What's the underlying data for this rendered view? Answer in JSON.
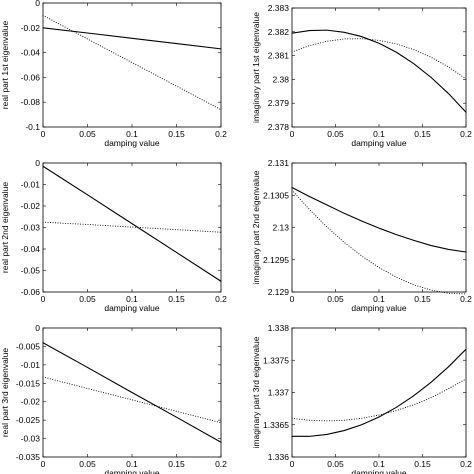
{
  "chart_data": [
    {
      "type": "line",
      "xlabel": "damping value",
      "ylabel": "real part 1st eigenvalue",
      "xlim": [
        0,
        0.2
      ],
      "ylim": [
        -0.1,
        0
      ],
      "xticks": [
        "0",
        "0.05",
        "0.1",
        "0.15",
        "0.2"
      ],
      "xtick_values": [
        0,
        0.05,
        0.1,
        0.15,
        0.2
      ],
      "yticks": [
        "-0.1",
        "-0.08",
        "-0.06",
        "-0.04",
        "-0.02",
        "0"
      ],
      "ytick_values": [
        -0.1,
        -0.08,
        -0.06,
        -0.04,
        -0.02,
        0
      ],
      "series": [
        {
          "style": "solid",
          "x": [
            0,
            0.05,
            0.1,
            0.15,
            0.2
          ],
          "y": [
            -0.02,
            -0.0242,
            -0.0285,
            -0.0327,
            -0.037
          ]
        },
        {
          "style": "dotted",
          "x": [
            0,
            0.05,
            0.1,
            0.15,
            0.2
          ],
          "y": [
            -0.01,
            -0.029,
            -0.048,
            -0.067,
            -0.086
          ]
        }
      ]
    },
    {
      "type": "line",
      "xlabel": "damping value",
      "ylabel": "imaginary part 1st eigenvalue",
      "xlim": [
        0,
        0.2
      ],
      "ylim": [
        2.378,
        2.383
      ],
      "xticks": [
        "0",
        "0.05",
        "0.1",
        "0.15",
        "0.2"
      ],
      "xtick_values": [
        0,
        0.05,
        0.1,
        0.15,
        0.2
      ],
      "yticks": [
        "2.378",
        "2.379",
        "2.38",
        "2.381",
        "2.382",
        "2.383"
      ],
      "ytick_values": [
        2.378,
        2.379,
        2.38,
        2.381,
        2.382,
        2.383
      ],
      "series": [
        {
          "style": "solid",
          "x": [
            0,
            0.02,
            0.04,
            0.06,
            0.08,
            0.1,
            0.12,
            0.14,
            0.16,
            0.18,
            0.2
          ],
          "y": [
            2.38194,
            2.38205,
            2.38207,
            2.38198,
            2.3818,
            2.38152,
            2.38114,
            2.38066,
            2.38008,
            2.3794,
            2.37862
          ]
        },
        {
          "style": "dotted",
          "x": [
            0,
            0.02,
            0.04,
            0.06,
            0.08,
            0.1,
            0.12,
            0.14,
            0.16,
            0.18,
            0.2
          ],
          "y": [
            2.38115,
            2.38142,
            2.3816,
            2.3817,
            2.38171,
            2.38164,
            2.38149,
            2.38125,
            2.38093,
            2.38052,
            2.38002
          ]
        }
      ]
    },
    {
      "type": "line",
      "xlabel": "damping value",
      "ylabel": "real part 2nd eigenvalue",
      "xlim": [
        0,
        0.2
      ],
      "ylim": [
        -0.06,
        0
      ],
      "xticks": [
        "0",
        "0.05",
        "0.1",
        "0.15",
        "0.2"
      ],
      "xtick_values": [
        0,
        0.05,
        0.1,
        0.15,
        0.2
      ],
      "yticks": [
        "-0.06",
        "-0.05",
        "-0.04",
        "-0.03",
        "-0.02",
        "-0.01",
        "0"
      ],
      "ytick_values": [
        -0.06,
        -0.05,
        -0.04,
        -0.03,
        -0.02,
        -0.01,
        0
      ],
      "series": [
        {
          "style": "solid",
          "x": [
            0,
            0.05,
            0.1,
            0.15,
            0.2
          ],
          "y": [
            -0.0015,
            -0.0148,
            -0.0282,
            -0.0416,
            -0.055
          ]
        },
        {
          "style": "dotted",
          "x": [
            0,
            0.05,
            0.1,
            0.15,
            0.2
          ],
          "y": [
            -0.0275,
            -0.0286,
            -0.0298,
            -0.031,
            -0.0322
          ]
        }
      ]
    },
    {
      "type": "line",
      "xlabel": "damping value",
      "ylabel": "imaginary part 2nd eigenvalue",
      "xlim": [
        0,
        0.2
      ],
      "ylim": [
        2.129,
        2.131
      ],
      "xticks": [
        "0",
        "0.05",
        "0.1",
        "0.15",
        "0.2"
      ],
      "xtick_values": [
        0,
        0.05,
        0.1,
        0.15,
        0.2
      ],
      "yticks": [
        "2.129",
        "2.1295",
        "2.13",
        "2.1305",
        "2.131"
      ],
      "ytick_values": [
        2.129,
        2.1295,
        2.13,
        2.1305,
        2.131
      ],
      "series": [
        {
          "style": "solid",
          "x": [
            0,
            0.02,
            0.04,
            0.06,
            0.08,
            0.1,
            0.12,
            0.14,
            0.16,
            0.18,
            0.2
          ],
          "y": [
            2.13062,
            2.13048,
            2.13035,
            2.13022,
            2.1301,
            2.12999,
            2.12989,
            2.1298,
            2.12972,
            2.12966,
            2.12962
          ]
        },
        {
          "style": "dotted",
          "x": [
            0,
            0.02,
            0.04,
            0.06,
            0.08,
            0.1,
            0.12,
            0.14,
            0.16,
            0.18,
            0.2
          ],
          "y": [
            2.13058,
            2.13028,
            2.13001,
            2.12977,
            2.12956,
            2.12938,
            2.12923,
            2.12911,
            2.12903,
            2.12898,
            2.12897
          ]
        }
      ]
    },
    {
      "type": "line",
      "xlabel": "damping value",
      "ylabel": "real part 3rd eigenvalue",
      "xlim": [
        0,
        0.2
      ],
      "ylim": [
        -0.035,
        0
      ],
      "xticks": [
        "0",
        "0.05",
        "0.1",
        "0.15",
        "0.2"
      ],
      "xtick_values": [
        0,
        0.05,
        0.1,
        0.15,
        0.2
      ],
      "yticks": [
        "-0.035",
        "-0.03",
        "-0.025",
        "-0.02",
        "-0.015",
        "-0.01",
        "-0.005",
        "0"
      ],
      "ytick_values": [
        -0.035,
        -0.03,
        -0.025,
        -0.02,
        -0.015,
        -0.01,
        -0.005,
        0
      ],
      "series": [
        {
          "style": "solid",
          "x": [
            0,
            0.05,
            0.1,
            0.15,
            0.2
          ],
          "y": [
            -0.004,
            -0.0107,
            -0.0175,
            -0.0242,
            -0.031
          ]
        },
        {
          "style": "dotted",
          "x": [
            0,
            0.05,
            0.1,
            0.15,
            0.2
          ],
          "y": [
            -0.0133,
            -0.0164,
            -0.0195,
            -0.0226,
            -0.0257
          ]
        }
      ]
    },
    {
      "type": "line",
      "xlabel": "damping value",
      "ylabel": "imaginary part 3rd eigenvalue",
      "xlim": [
        0,
        0.2
      ],
      "ylim": [
        1.336,
        1.338
      ],
      "xticks": [
        "0",
        "0.05",
        "0.1",
        "0.15",
        "0.2"
      ],
      "xtick_values": [
        0,
        0.05,
        0.1,
        0.15,
        0.2
      ],
      "yticks": [
        "1.336",
        "1.3365",
        "1.337",
        "1.3375",
        "1.338"
      ],
      "ytick_values": [
        1.336,
        1.3365,
        1.337,
        1.3375,
        1.338
      ],
      "series": [
        {
          "style": "solid",
          "x": [
            0,
            0.02,
            0.04,
            0.06,
            0.08,
            0.1,
            0.12,
            0.14,
            0.16,
            0.18,
            0.2
          ],
          "y": [
            1.33632,
            1.33632,
            1.33635,
            1.33641,
            1.3365,
            1.33662,
            1.33677,
            1.33695,
            1.33716,
            1.3374,
            1.33767
          ]
        },
        {
          "style": "dotted",
          "x": [
            0,
            0.02,
            0.04,
            0.06,
            0.08,
            0.1,
            0.12,
            0.14,
            0.16,
            0.18,
            0.2
          ],
          "y": [
            1.3366,
            1.33657,
            1.33656,
            1.33657,
            1.3366,
            1.33665,
            1.33672,
            1.33681,
            1.33692,
            1.33706,
            1.33721
          ]
        }
      ]
    }
  ]
}
